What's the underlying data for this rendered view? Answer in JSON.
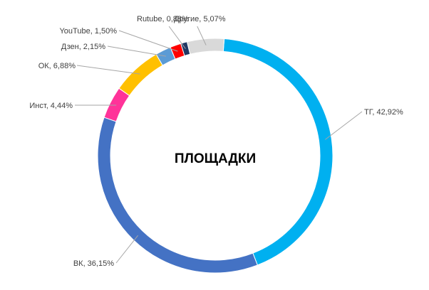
{
  "chart_data": {
    "type": "pie",
    "variant": "donut",
    "title": "",
    "center_label": "ПЛОЩАДКИ",
    "slices": [
      {
        "name": "ТГ",
        "value": 42.92,
        "label": "ТГ, 42,92%",
        "color": "#00B0F0"
      },
      {
        "name": "ВК",
        "value": 36.15,
        "label": "ВК, 36,15%",
        "color": "#4472C4"
      },
      {
        "name": "Инст",
        "value": 4.44,
        "label": "Инст, 4,44%",
        "color": "#FF3399"
      },
      {
        "name": "ОК",
        "value": 6.88,
        "label": "ОК, 6,88%",
        "color": "#FFC000"
      },
      {
        "name": "Дзен",
        "value": 2.15,
        "label": "Дзен, 2,15%",
        "color": "#5B9BD5"
      },
      {
        "name": "YouTube",
        "value": 1.5,
        "label": "YouTube, 1,50%",
        "color": "#FF0000"
      },
      {
        "name": "Rutube",
        "value": 0.88,
        "label": "Rutube, 0,88%",
        "color": "#1F3864"
      },
      {
        "name": "Другие",
        "value": 5.07,
        "label": "Другие, 5,07%",
        "color": "#D9D9D9"
      }
    ],
    "legend": "none"
  }
}
